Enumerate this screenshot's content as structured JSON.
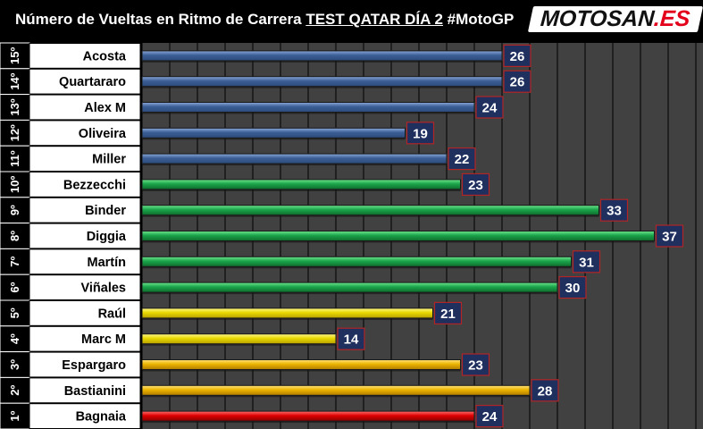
{
  "title": {
    "prefix": "Número de Vueltas en Ritmo de Carrera ",
    "underlined": "TEST QATAR DÍA 2",
    "suffix": " #MotoGP"
  },
  "logo": {
    "main": "MOTOSAN",
    "suffix": ".ES",
    "colors": {
      "main": "#111111",
      "suffix": "#e3001b",
      "background": "#ffffff"
    }
  },
  "chart_data": {
    "type": "bar",
    "orientation": "horizontal",
    "grid": true,
    "xlim": [
      0,
      40
    ],
    "rows": [
      {
        "rank": "15º",
        "rider": "Acosta",
        "value": 26,
        "color": "blue"
      },
      {
        "rank": "14º",
        "rider": "Quartararo",
        "value": 26,
        "color": "blue"
      },
      {
        "rank": "13º",
        "rider": "Alex M",
        "value": 24,
        "color": "blue"
      },
      {
        "rank": "12º",
        "rider": "Oliveira",
        "value": 19,
        "color": "blue"
      },
      {
        "rank": "11º",
        "rider": "Miller",
        "value": 22,
        "color": "blue"
      },
      {
        "rank": "10º",
        "rider": "Bezzecchi",
        "value": 23,
        "color": "green"
      },
      {
        "rank": "9º",
        "rider": "Binder",
        "value": 33,
        "color": "green"
      },
      {
        "rank": "8º",
        "rider": "Diggia",
        "value": 37,
        "color": "green"
      },
      {
        "rank": "7º",
        "rider": "Martín",
        "value": 31,
        "color": "green"
      },
      {
        "rank": "6º",
        "rider": "Viñales",
        "value": 30,
        "color": "green"
      },
      {
        "rank": "5º",
        "rider": "Raúl",
        "value": 21,
        "color": "yellow"
      },
      {
        "rank": "4º",
        "rider": "Marc M",
        "value": 14,
        "color": "yellow"
      },
      {
        "rank": "3º",
        "rider": "Espargaro",
        "value": 23,
        "color": "amber"
      },
      {
        "rank": "2º",
        "rider": "Bastianini",
        "value": 28,
        "color": "amber"
      },
      {
        "rank": "1º",
        "rider": "Bagnaia",
        "value": 24,
        "color": "red"
      }
    ],
    "colors": {
      "blue": [
        "#2c4a7a",
        "#8aa8d8",
        "#3b5e96"
      ],
      "green": [
        "#0e6b2c",
        "#6ee68e",
        "#1aa44a"
      ],
      "yellow": [
        "#b8a000",
        "#fff88a",
        "#e8d800"
      ],
      "amber": [
        "#b07c00",
        "#ffe27a",
        "#ecb400"
      ],
      "red": [
        "#8a0000",
        "#ff7070",
        "#dd0000"
      ],
      "label_box_fill": "#1f2f5e",
      "label_box_border": "#b22525",
      "plot_background": "#414141",
      "name_background": "#ffffff"
    }
  }
}
